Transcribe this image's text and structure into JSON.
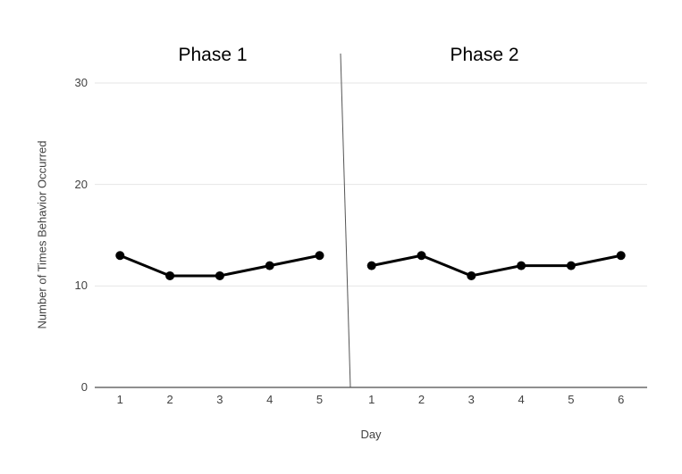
{
  "chart_data": {
    "type": "line",
    "title": "",
    "xlabel": "Day",
    "ylabel": "Number of Times Behavior Occurred",
    "ylim": [
      0,
      30
    ],
    "yticks": [
      0,
      10,
      20,
      30
    ],
    "grid": true,
    "legend": "none",
    "phase_divider": true,
    "phases": [
      {
        "label": "Phase 1",
        "x": [
          1,
          2,
          3,
          4,
          5
        ],
        "values": [
          13,
          11,
          11,
          12,
          13
        ]
      },
      {
        "label": "Phase 2",
        "x": [
          1,
          2,
          3,
          4,
          5,
          6
        ],
        "values": [
          12,
          13,
          11,
          12,
          12,
          13
        ]
      }
    ]
  },
  "colors": {
    "series": "#000000",
    "gridline": "#e6e6e6",
    "axis": "#8f8f8f",
    "divider": "#555555",
    "tick_text": "#424242",
    "title_text": "#000000"
  }
}
